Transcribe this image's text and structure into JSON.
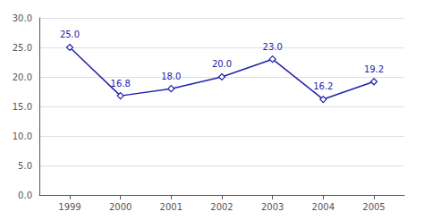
{
  "chart_data": {
    "type": "line",
    "x": [
      1999,
      2000,
      2001,
      2002,
      2003,
      2004,
      2005
    ],
    "values": [
      25.0,
      16.8,
      18.0,
      20.0,
      23.0,
      16.2,
      19.2
    ],
    "value_labels": [
      "25.0",
      "16.8",
      "18.0",
      "20.0",
      "23.0",
      "16.2",
      "19.2"
    ],
    "color": "#2222aa",
    "marker": "diamond",
    "xlim": [
      1998.4,
      2005.6
    ],
    "xticks": [
      1999,
      2000,
      2001,
      2002,
      2003,
      2004,
      2005
    ],
    "ylim": [
      0.0,
      30.0
    ],
    "yticks": [
      {
        "value": 0.0,
        "label": "0.0"
      },
      {
        "value": 5.0,
        "label": "5.0"
      },
      {
        "value": 10.0,
        "label": "10.0"
      },
      {
        "value": 15.0,
        "label": "15.0"
      },
      {
        "value": 20.0,
        "label": "20.0"
      },
      {
        "value": 25.0,
        "label": "25.0"
      },
      {
        "value": 30.0,
        "label": "30.0"
      }
    ],
    "grid": true,
    "data_labels": true
  }
}
